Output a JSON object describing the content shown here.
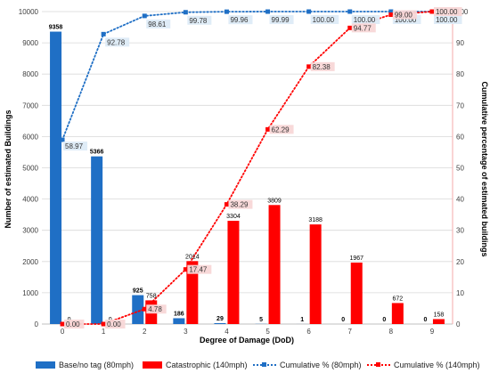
{
  "chart_data": {
    "type": "bar",
    "title": "",
    "xlabel": "Degree of Damage (DoD)",
    "ylabel": "Number of estimated Buildings",
    "ylabel_right": "Cumulative percentage of estimated buildings",
    "categories": [
      "0",
      "1",
      "2",
      "3",
      "4",
      "5",
      "6",
      "7",
      "8",
      "9"
    ],
    "ylim": [
      0,
      10000
    ],
    "ylim_right": [
      0,
      100
    ],
    "yticks": [
      "0",
      "1000",
      "2000",
      "3000",
      "4000",
      "5000",
      "6000",
      "7000",
      "8000",
      "9000",
      "10000"
    ],
    "yticks_right": [
      "0",
      "10",
      "20",
      "30",
      "40",
      "50",
      "60",
      "70",
      "80",
      "90",
      "100"
    ],
    "grid": true,
    "legend_position": "bottom",
    "series": [
      {
        "name": "Base/no tag (80mph)",
        "kind": "bar",
        "axis": "left",
        "color": "#1F6FC5",
        "values": [
          9358,
          5366,
          925,
          186,
          29,
          5,
          1,
          0,
          0,
          0
        ],
        "labels": [
          "9358",
          "5366",
          "925",
          "186",
          "29",
          "5",
          "1",
          "0",
          "0",
          "0"
        ]
      },
      {
        "name": "Catastrophic (140mph)",
        "kind": "bar",
        "axis": "left",
        "color": "#FF0000",
        "values": [
          0,
          0,
          758,
          2014,
          3304,
          3809,
          3188,
          1967,
          672,
          158
        ],
        "labels": [
          "0",
          "0",
          "758",
          "2014",
          "3304",
          "3809",
          "3188",
          "1967",
          "672",
          "158"
        ]
      },
      {
        "name": "Cumulative % (80mph)",
        "kind": "line",
        "axis": "right",
        "color": "#1F6FC5",
        "label_bg": "#DDEBF7",
        "values": [
          58.97,
          92.78,
          98.61,
          99.78,
          99.96,
          99.99,
          100.0,
          100.0,
          100.0,
          100.0
        ],
        "labels": [
          "58.97",
          "92.78",
          "98.61",
          "99.78",
          "99.96",
          "99.99",
          "100.00",
          "100.00",
          "100.00",
          "100.00"
        ]
      },
      {
        "name": "Cumulative % (140mph)",
        "kind": "line",
        "axis": "right",
        "color": "#FF0000",
        "label_bg": "#F8D7D7",
        "values": [
          0.0,
          0.0,
          4.78,
          17.47,
          38.29,
          62.29,
          82.38,
          94.77,
          99.0,
          100.0
        ],
        "labels": [
          "0.00",
          "0.00",
          "4.78",
          "17.47",
          "38.29",
          "62.29",
          "82.38",
          "94.77",
          "99.00",
          "100.00"
        ]
      }
    ]
  }
}
